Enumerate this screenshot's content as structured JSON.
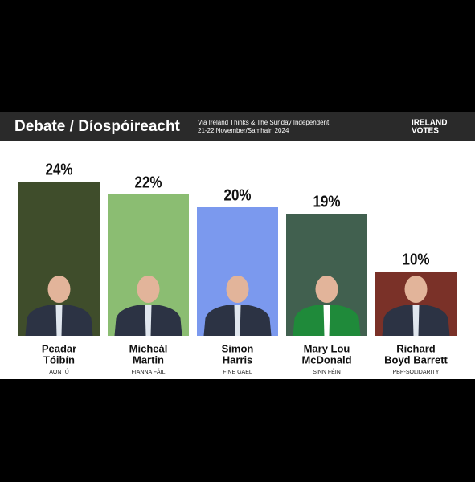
{
  "chart_data": {
    "type": "bar",
    "title": "Debate / Díospóireacht",
    "subtitle": [
      "Via Ireland Thinks & The Sunday Independent",
      "21-22 November/Samhain 2024"
    ],
    "logo": [
      "IRELAND",
      "VOTES"
    ],
    "categories": [
      [
        "Peadar",
        "Tóibín"
      ],
      [
        "Micheál",
        "Martin"
      ],
      [
        "Simon",
        "Harris"
      ],
      [
        "Mary Lou",
        "McDonald"
      ],
      [
        "Richard",
        "Boyd Barrett"
      ]
    ],
    "parties": [
      "AONTÚ",
      "FIANNA FÁIL",
      "FINE GAEL",
      "SINN FÉIN",
      "PBP-SOLIDARITY"
    ],
    "values": [
      24,
      22,
      20,
      19,
      10
    ],
    "value_labels": [
      "24%",
      "22%",
      "20%",
      "19%",
      "10%"
    ],
    "colors": [
      "#3f4d2b",
      "#8bbd72",
      "#7b99ee",
      "#41604f",
      "#7a3128"
    ],
    "ylim": [
      0,
      24
    ]
  }
}
